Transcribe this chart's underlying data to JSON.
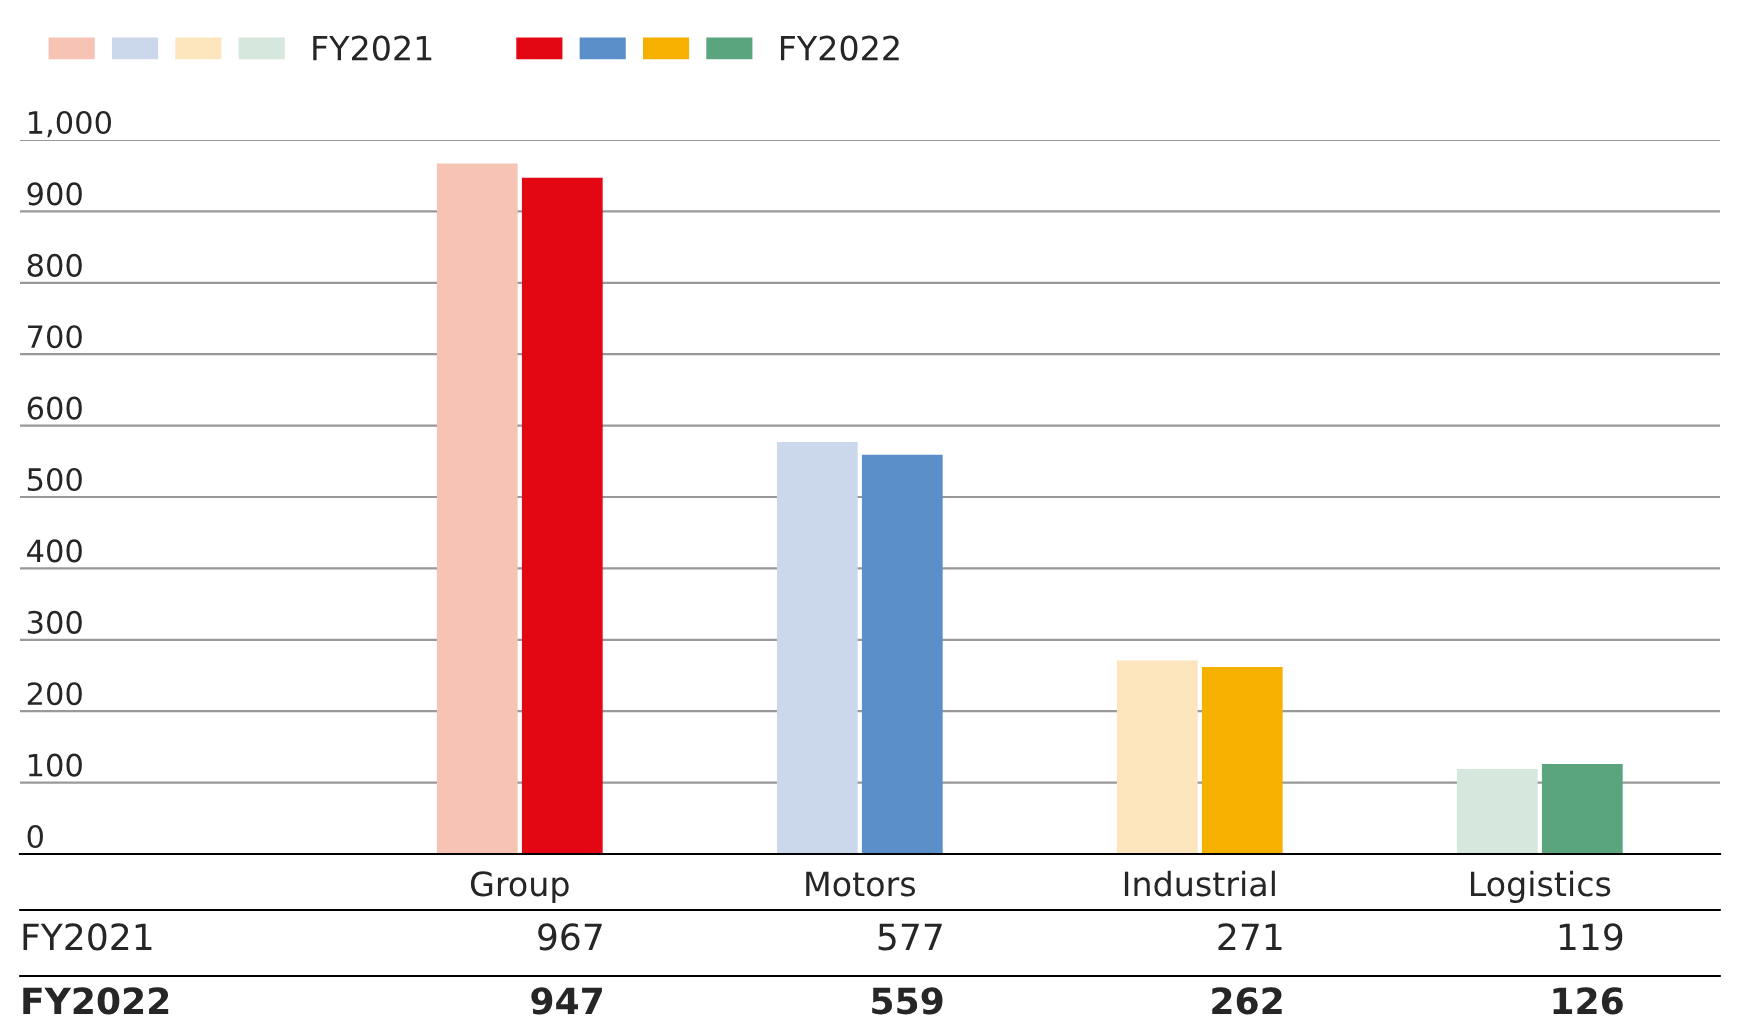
{
  "chart_data": {
    "type": "bar",
    "categories": [
      "Group",
      "Motors",
      "Industrial",
      "Logistics"
    ],
    "series": [
      {
        "name": "FY2021",
        "colors": [
          "#f6c3b4",
          "#cbd8ec",
          "#fde6bd",
          "#d6e8dd"
        ],
        "values": [
          967,
          577,
          271,
          119
        ]
      },
      {
        "name": "FY2022",
        "colors": [
          "#e30613",
          "#5b8fc9",
          "#f5b000",
          "#5ba57e"
        ],
        "values": [
          947,
          559,
          262,
          126
        ]
      }
    ],
    "ylim": [
      0,
      1000
    ],
    "yticks": [
      0,
      100,
      200,
      300,
      400,
      500,
      600,
      700,
      800,
      900,
      {
        "value": 1000,
        "label": "1,000"
      }
    ],
    "grid": "y",
    "legend": "top left",
    "data_labels": true
  }
}
